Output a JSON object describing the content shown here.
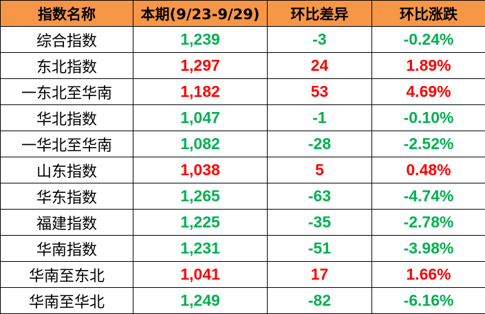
{
  "colors": {
    "header_bg": "#F79646",
    "up": "#FF0000",
    "down": "#00B050"
  },
  "headers": [
    "指数名称",
    "本期(9/23-9/29)",
    "环比差异",
    "环比涨跌"
  ],
  "rows": [
    {
      "name": "综合指数",
      "value": "1,239",
      "diff": "-3",
      "pct": "-0.24%",
      "trend": "down"
    },
    {
      "name": "东北指数",
      "value": "1,297",
      "diff": "24",
      "pct": "1.89%",
      "trend": "up"
    },
    {
      "name": "一东北至华南",
      "value": "1,182",
      "diff": "53",
      "pct": "4.69%",
      "trend": "up"
    },
    {
      "name": "华北指数",
      "value": "1,047",
      "diff": "-1",
      "pct": "-0.10%",
      "trend": "down"
    },
    {
      "name": "一华北至华南",
      "value": "1,082",
      "diff": "-28",
      "pct": "-2.52%",
      "trend": "down"
    },
    {
      "name": "山东指数",
      "value": "1,038",
      "diff": "5",
      "pct": "0.48%",
      "trend": "up"
    },
    {
      "name": "华东指数",
      "value": "1,265",
      "diff": "-63",
      "pct": "-4.74%",
      "trend": "down"
    },
    {
      "name": "福建指数",
      "value": "1,225",
      "diff": "-35",
      "pct": "-2.78%",
      "trend": "down"
    },
    {
      "name": "华南指数",
      "value": "1,231",
      "diff": "-51",
      "pct": "-3.98%",
      "trend": "down"
    },
    {
      "name": "华南至东北",
      "value": "1,041",
      "diff": "17",
      "pct": "1.66%",
      "trend": "up"
    },
    {
      "name": "华南至华北",
      "value": "1,249",
      "diff": "-82",
      "pct": "-6.16%",
      "trend": "down"
    }
  ]
}
